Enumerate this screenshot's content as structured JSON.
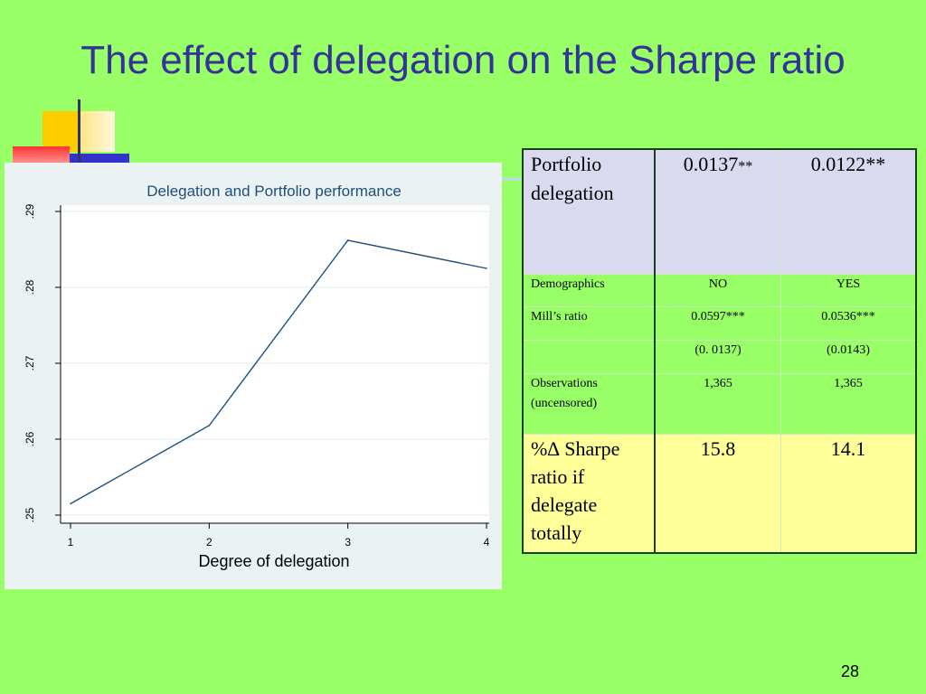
{
  "slide": {
    "title": "The effect of delegation on the Sharpe ratio",
    "page_number": "28"
  },
  "chart_data": {
    "type": "line",
    "title": "Delegation and Portfolio performance",
    "xlabel": "Degree of delegation",
    "ylabel": "",
    "x": [
      1,
      2,
      3,
      4
    ],
    "series": [
      {
        "values": [
          0.2515,
          0.2618,
          0.2862,
          0.2825
        ]
      }
    ],
    "xlim": [
      1,
      4
    ],
    "ylim": [
      0.25,
      0.29
    ],
    "xticks": [
      "1",
      "2",
      "3",
      "4"
    ],
    "yticks": [
      ".25",
      ".26",
      ".27",
      ".28",
      ".29"
    ],
    "grid": true,
    "line_color": "#1f4e79"
  },
  "table": {
    "header": {
      "label": "Portfolio delegation",
      "col1_value": "0.0137",
      "col1_stars": "**",
      "col2_value": "0.0122**"
    },
    "rows": [
      {
        "label": "Demographics",
        "col1": "NO",
        "col2": "YES"
      },
      {
        "label": "Mill’s ratio",
        "col1": "0.0597***",
        "col2": "0.0536***"
      },
      {
        "label": "",
        "col1": "(0. 0137)",
        "col2": "(0.0143)"
      },
      {
        "label": "Observations (uncensored)",
        "col1": "1,365",
        "col2": "1,365"
      }
    ],
    "footer": {
      "label": "%∆ Sharpe ratio if delegate totally",
      "col1": "15.8",
      "col2": "14.1"
    }
  }
}
